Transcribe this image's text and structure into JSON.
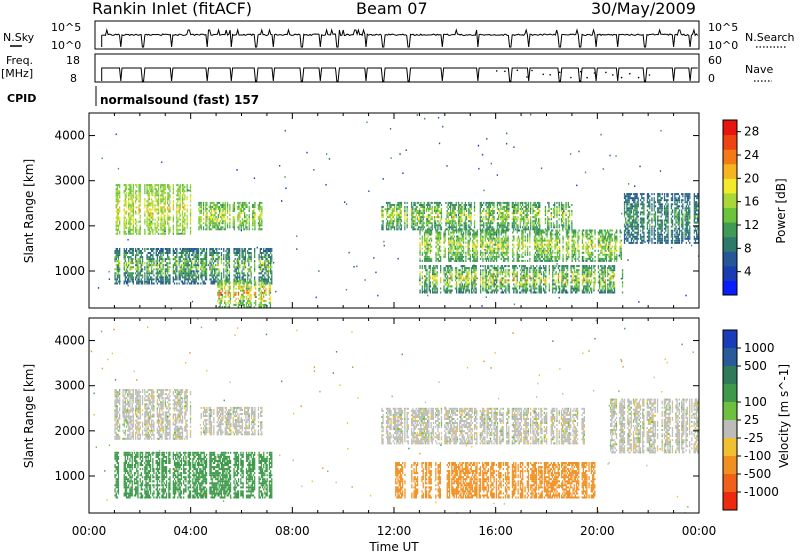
{
  "header": {
    "title": "Rankin Inlet (fitACF)",
    "beam": "Beam 07",
    "date": "30/May/2009"
  },
  "top_panels": {
    "nsky_label": "N.Sky",
    "nsky_ticks": [
      "10^5",
      "10^0"
    ],
    "nsearch_label": "N.Search",
    "freq_label": "Freq.",
    "freq_unit": "[MHz]",
    "freq_ticks": [
      "18",
      "8"
    ],
    "nave_label": "Nave",
    "nave_ticks": [
      "60",
      "0"
    ],
    "cpid_label": "CPID",
    "cpid_value": "normalsound (fast) 157"
  },
  "chart_data": [
    {
      "type": "heatmap",
      "name": "Power",
      "xlabel": "",
      "ylabel": "Slant Range [km]",
      "x_range_hours": [
        0,
        24
      ],
      "xticks": [
        "00:00",
        "04:00",
        "08:00",
        "12:00",
        "16:00",
        "20:00",
        "00:00"
      ],
      "ylim": [
        180,
        4500
      ],
      "yticks": [
        1000,
        2000,
        3000,
        4000
      ],
      "colorbar": {
        "label": "Power [dB]",
        "ticks": [
          "4",
          "8",
          "12",
          "16",
          "20",
          "24",
          "28"
        ],
        "range": [
          0,
          30
        ],
        "colors": [
          "#0a1dff",
          "#1a3cb0",
          "#26569a",
          "#2e7a6a",
          "#3e9a55",
          "#6cc33c",
          "#a8d838",
          "#f2ea2a",
          "#f6b420",
          "#f47a16",
          "#ee4412",
          "#e8140e"
        ]
      },
      "features": [
        {
          "t": [
            1.0,
            4.0
          ],
          "r": [
            1800,
            2900
          ],
          "dB": 14,
          "peak_dB": 22
        },
        {
          "t": [
            4.3,
            6.8
          ],
          "r": [
            1900,
            2500
          ],
          "dB": 12,
          "peak_dB": 21
        },
        {
          "t": [
            1.0,
            7.2
          ],
          "r": [
            700,
            1500
          ],
          "dB": 7,
          "peak_dB": 20
        },
        {
          "t": [
            5.0,
            7.2
          ],
          "r": [
            180,
            800
          ],
          "dB": 12,
          "peak_dB": 29
        },
        {
          "t": [
            11.5,
            19.0
          ],
          "r": [
            1900,
            2500
          ],
          "dB": 10,
          "peak_dB": 22
        },
        {
          "t": [
            13.0,
            21.0
          ],
          "r": [
            1200,
            1900
          ],
          "dB": 11,
          "peak_dB": 22
        },
        {
          "t": [
            13.0,
            21.0
          ],
          "r": [
            500,
            1100
          ],
          "dB": 9,
          "peak_dB": 25
        },
        {
          "t": [
            21.0,
            24.0
          ],
          "r": [
            1600,
            2700
          ],
          "dB": 7,
          "peak_dB": 14
        }
      ]
    },
    {
      "type": "heatmap",
      "name": "Velocity",
      "xlabel": "Time UT",
      "ylabel": "Slant Range [km]",
      "x_range_hours": [
        0,
        24
      ],
      "xticks": [
        "00:00",
        "04:00",
        "08:00",
        "12:00",
        "16:00",
        "20:00",
        "00:00"
      ],
      "ylim": [
        180,
        4500
      ],
      "yticks": [
        1000,
        2000,
        3000,
        4000
      ],
      "colorbar": {
        "label": "Velocity [m s^-1]",
        "ticks": [
          "1000",
          "500",
          "100",
          "25",
          "-25",
          "-100",
          "-500",
          "-1000"
        ],
        "colors": [
          "#1a3cb8",
          "#2a5a9a",
          "#2e7a5a",
          "#3e9a4a",
          "#70c040",
          "#bcbcb8",
          "#f0c030",
          "#f09020",
          "#f06018",
          "#ec2a10"
        ]
      },
      "features": [
        {
          "t": [
            1.0,
            4.0
          ],
          "r": [
            1800,
            2900
          ],
          "v": 0
        },
        {
          "t": [
            4.3,
            6.8
          ],
          "r": [
            1900,
            2500
          ],
          "v": 0
        },
        {
          "t": [
            1.0,
            7.2
          ],
          "r": [
            500,
            1500
          ],
          "v": 180
        },
        {
          "t": [
            11.5,
            19.5
          ],
          "r": [
            1700,
            2500
          ],
          "v": 0
        },
        {
          "t": [
            12.0,
            20.0
          ],
          "r": [
            500,
            1300
          ],
          "v": -150
        },
        {
          "t": [
            20.5,
            24.0
          ],
          "r": [
            1500,
            2700
          ],
          "v": 0
        }
      ]
    }
  ]
}
